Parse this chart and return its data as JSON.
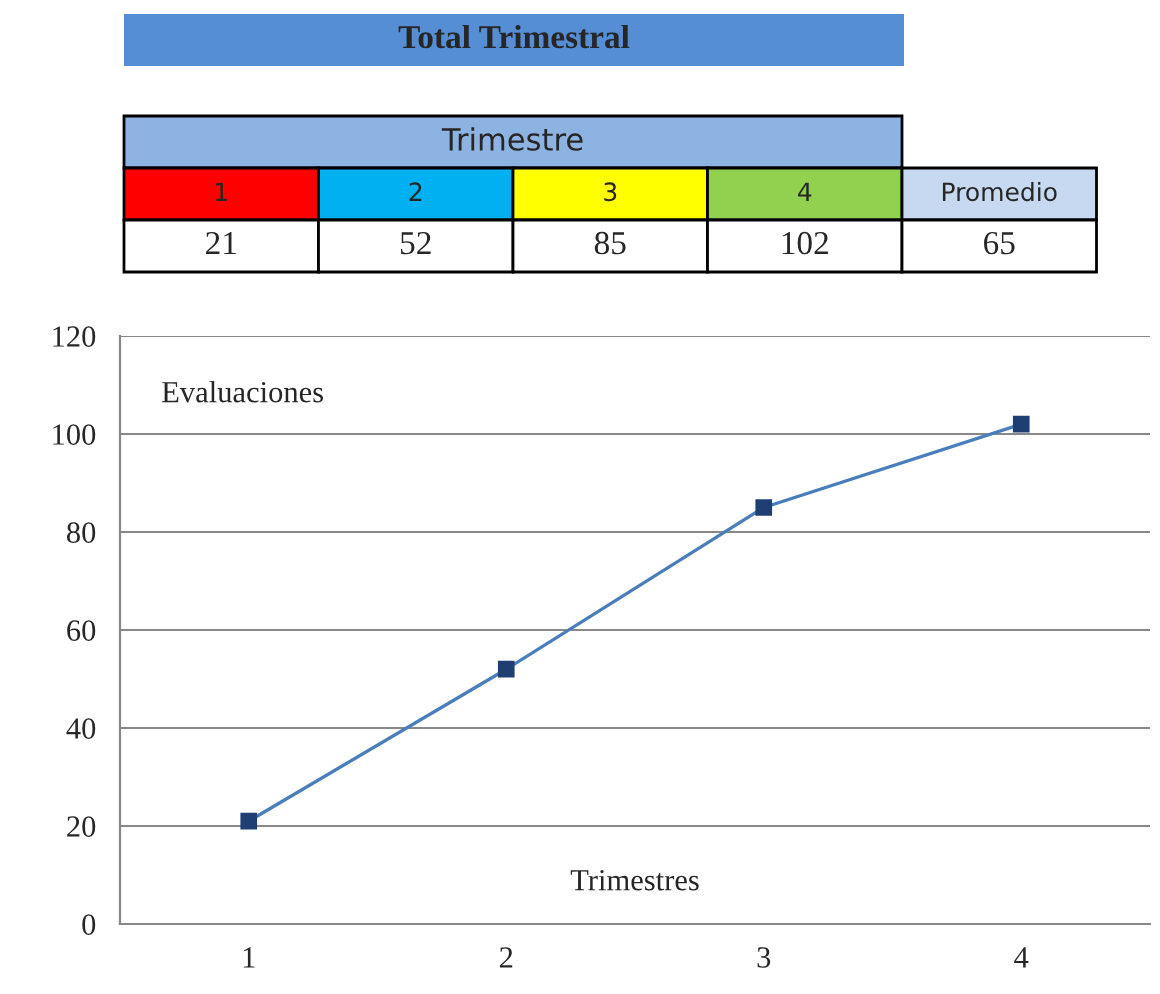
{
  "chart_data": {
    "type": "line",
    "title": "Total Trimestral",
    "xlabel": "Trimestres",
    "ylabel": "Evaluaciones",
    "categories": [
      "1",
      "2",
      "3",
      "4"
    ],
    "series": [
      {
        "color": "#4a7ebb",
        "values": [
          21,
          52,
          85,
          102
        ]
      }
    ],
    "ylim": [
      0,
      120
    ],
    "yticks": [
      0,
      20,
      40,
      60,
      80,
      100,
      120
    ],
    "grid": "y",
    "marker": "square",
    "line_style": "solid",
    "annotations": [
      "Trimestre",
      "21",
      "52",
      "85",
      "102",
      "Promedio",
      "65"
    ]
  }
}
